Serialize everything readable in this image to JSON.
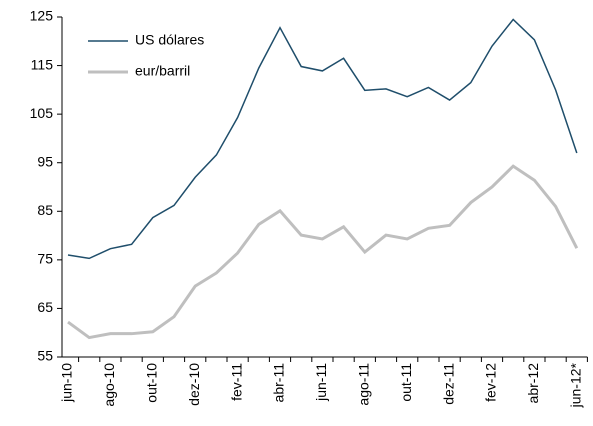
{
  "chart_data": {
    "type": "line",
    "categories": [
      "jun-10",
      null,
      "ago-10",
      null,
      "out-10",
      null,
      "dez-10",
      null,
      "fev-11",
      null,
      "abr-11",
      null,
      "jun-11",
      null,
      "ago-11",
      null,
      "out-11",
      null,
      "dez-11",
      null,
      "fev-12",
      null,
      "abr-12",
      null,
      "jun-12*"
    ],
    "series": [
      {
        "name": "US dólares",
        "color": "#1f4e6b",
        "values": [
          76,
          75.3,
          77.3,
          78.2,
          83.7,
          86.2,
          92,
          96.6,
          104.3,
          114.5,
          122.8,
          114.8,
          113.9,
          116.5,
          109.9,
          110.2,
          108.6,
          110.5,
          107.9,
          111.5,
          119,
          124.5,
          120.3,
          110,
          97
        ]
      },
      {
        "name": "eur/barril",
        "color": "#bfbfbf",
        "values": [
          62.2,
          59,
          59.8,
          59.8,
          60.2,
          63.3,
          69.6,
          72.3,
          76.4,
          82.3,
          85.1,
          80.1,
          79.3,
          81.8,
          76.6,
          80.1,
          79.3,
          81.5,
          82.1,
          86.8,
          90,
          94.3,
          91.4,
          86,
          77.4
        ]
      }
    ],
    "ylim": [
      55,
      125
    ],
    "yticks": [
      55,
      65,
      75,
      85,
      95,
      105,
      115,
      125
    ],
    "grid": false,
    "legend": "top-left"
  }
}
